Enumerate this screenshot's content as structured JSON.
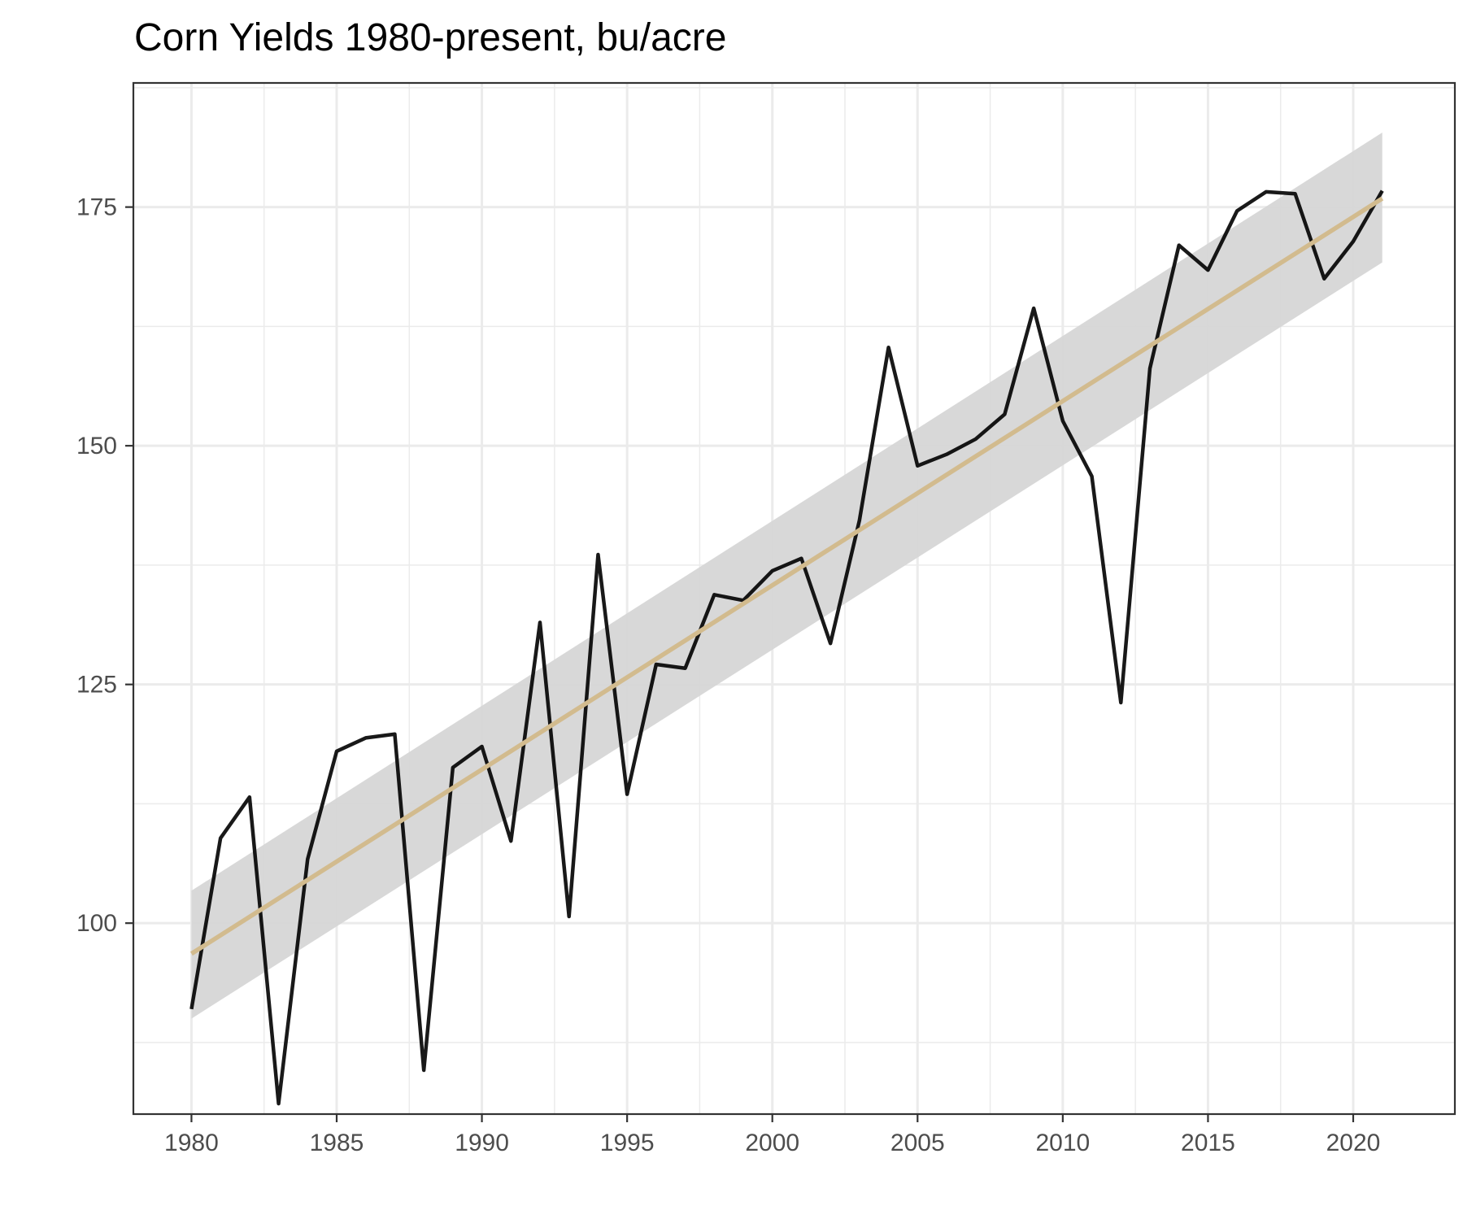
{
  "chart_data": {
    "type": "line",
    "title": "Corn Yields 1980-present, bu/acre",
    "xlabel": "",
    "ylabel": "",
    "xlim": [
      1978,
      2023.5
    ],
    "ylim": [
      80,
      188
    ],
    "x_ticks": [
      1980,
      1985,
      1990,
      1995,
      2000,
      2005,
      2010,
      2015,
      2020
    ],
    "y_ticks": [
      100,
      125,
      150,
      175
    ],
    "grid": true,
    "legend": "none",
    "x": [
      1980,
      1981,
      1982,
      1983,
      1984,
      1985,
      1986,
      1987,
      1988,
      1989,
      1990,
      1991,
      1992,
      1993,
      1994,
      1995,
      1996,
      1997,
      1998,
      1999,
      2000,
      2001,
      2002,
      2003,
      2004,
      2005,
      2006,
      2007,
      2008,
      2009,
      2010,
      2011,
      2012,
      2013,
      2014,
      2015,
      2016,
      2017,
      2018,
      2019,
      2020,
      2021
    ],
    "series": [
      {
        "values": [
          91.0,
          108.9,
          113.2,
          81.1,
          106.7,
          118.0,
          119.4,
          119.8,
          84.6,
          116.3,
          118.5,
          108.6,
          131.5,
          100.7,
          138.6,
          113.5,
          127.1,
          126.7,
          134.4,
          133.8,
          136.9,
          138.2,
          129.3,
          142.2,
          160.3,
          147.9,
          149.1,
          150.7,
          153.3,
          164.4,
          152.6,
          146.8,
          123.1,
          158.1,
          171.0,
          168.4,
          174.6,
          176.6,
          176.4,
          167.5,
          171.4,
          176.7
        ],
        "color": "#000000"
      }
    ],
    "trend": {
      "method": "linear fit with confidence band",
      "start": [
        1980,
        96.8
      ],
      "end": [
        2021,
        175.9
      ],
      "band_lower_start": 90.0,
      "band_upper_start": 103.4,
      "band_lower_end": 169.2,
      "band_upper_end": 182.8,
      "line_color": "#d2bb8e",
      "band_color": "#d6d6d6"
    }
  }
}
